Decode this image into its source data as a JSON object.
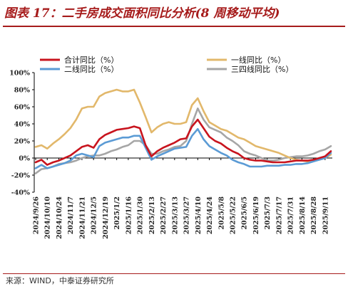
{
  "header": {
    "title": "图表 17：二手房成交面积同比分析(8 周移动平均)"
  },
  "footer": {
    "source_label": "来源：",
    "source_text": "WIND，中泰证券研究所"
  },
  "colors": {
    "title": "#a61b1b",
    "total": "#c8141e",
    "tier1": "#e2b86b",
    "tier2": "#5b9bd5",
    "tier34": "#a6a6a6"
  },
  "chart_data": {
    "type": "line",
    "title": "",
    "xlabel": "",
    "ylabel": "",
    "ylim": [
      -40,
      100
    ],
    "y_ticks": [
      "-40%",
      "-20%",
      "0%",
      "20%",
      "40%",
      "60%",
      "80%",
      "100%"
    ],
    "y_tick_values": [
      -40,
      -20,
      0,
      20,
      40,
      60,
      80,
      100
    ],
    "x_tick_labels": [
      "2024/9/26",
      "2024/10/10",
      "2024/10/24",
      "2024/11/7",
      "2024/11/21",
      "2024/12/5",
      "2024/12/19",
      "2025/1/2",
      "2025/1/16",
      "2025/1/30",
      "2025/2/13",
      "2025/2/27",
      "2025/3/13",
      "2025/3/27",
      "2025/4/10",
      "2025/4/24",
      "2025/5/8",
      "2025/5/22",
      "2025/6/5",
      "2025/6/19",
      "2025/7/3",
      "2025/7/17",
      "2025/7/31",
      "2025/8/14",
      "2025/8/28",
      "2025/9/11"
    ],
    "x": [
      "2024/9/26",
      "2024/10/3",
      "2024/10/10",
      "2024/10/17",
      "2024/10/24",
      "2024/10/31",
      "2024/11/7",
      "2024/11/14",
      "2024/11/21",
      "2024/11/28",
      "2024/12/5",
      "2024/12/12",
      "2024/12/19",
      "2024/12/26",
      "2025/1/2",
      "2025/1/9",
      "2025/1/16",
      "2025/1/23",
      "2025/1/30",
      "2025/2/6",
      "2025/2/13",
      "2025/2/20",
      "2025/2/27",
      "2025/3/6",
      "2025/3/13",
      "2025/3/20",
      "2025/3/27",
      "2025/4/3",
      "2025/4/10",
      "2025/4/17",
      "2025/4/24",
      "2025/5/1",
      "2025/5/8",
      "2025/5/15",
      "2025/5/22",
      "2025/5/29",
      "2025/6/5",
      "2025/6/12",
      "2025/6/19",
      "2025/6/26",
      "2025/7/3",
      "2025/7/10",
      "2025/7/17",
      "2025/7/24",
      "2025/7/31",
      "2025/8/7",
      "2025/8/14",
      "2025/8/21",
      "2025/8/28",
      "2025/9/4",
      "2025/9/11",
      "2025/9/18"
    ],
    "legend_position": "top",
    "series": [
      {
        "name": "合计同比（%）",
        "color_key": "total",
        "values": [
          -5,
          -2,
          -8,
          -5,
          -3,
          0,
          3,
          8,
          13,
          15,
          12,
          22,
          27,
          30,
          33,
          34,
          35,
          37,
          35,
          15,
          2,
          8,
          12,
          15,
          18,
          22,
          23,
          37,
          45,
          35,
          25,
          20,
          17,
          12,
          8,
          5,
          0,
          -2,
          -3,
          -3,
          -4,
          -5,
          -5,
          -5,
          -4,
          -3,
          -3,
          -3,
          -2,
          0,
          2,
          8
        ]
      },
      {
        "name": "一线同比（%）",
        "color_key": "tier1",
        "values": [
          13,
          15,
          11,
          17,
          22,
          28,
          35,
          45,
          58,
          60,
          60,
          72,
          76,
          78,
          80,
          78,
          78,
          80,
          65,
          48,
          30,
          36,
          40,
          42,
          40,
          40,
          42,
          62,
          70,
          55,
          42,
          38,
          34,
          32,
          28,
          24,
          22,
          18,
          14,
          12,
          10,
          8,
          6,
          3,
          0,
          -2,
          -3,
          -4,
          -3,
          -2,
          0,
          4
        ]
      },
      {
        "name": "二线同比（%）",
        "color_key": "tier2",
        "values": [
          -12,
          -8,
          -12,
          -10,
          -8,
          -6,
          -3,
          3,
          5,
          3,
          1,
          14,
          18,
          20,
          22,
          24,
          24,
          26,
          26,
          12,
          -2,
          2,
          5,
          8,
          11,
          12,
          13,
          26,
          34,
          22,
          14,
          10,
          6,
          3,
          -2,
          -5,
          -7,
          -10,
          -10,
          -10,
          -9,
          -9,
          -9,
          -8,
          -8,
          -7,
          -7,
          -6,
          -4,
          -2,
          0,
          6
        ]
      },
      {
        "name": "三四线同比（%）",
        "color_key": "tier34",
        "values": [
          -18,
          -13,
          -12,
          -10,
          -7,
          -6,
          -5,
          -3,
          0,
          2,
          3,
          3,
          5,
          8,
          10,
          13,
          15,
          20,
          20,
          15,
          5,
          5,
          8,
          10,
          13,
          14,
          20,
          40,
          58,
          45,
          36,
          33,
          30,
          24,
          20,
          15,
          8,
          5,
          3,
          0,
          -3,
          -3,
          -2,
          0,
          1,
          2,
          2,
          3,
          5,
          8,
          10,
          14
        ]
      }
    ]
  }
}
